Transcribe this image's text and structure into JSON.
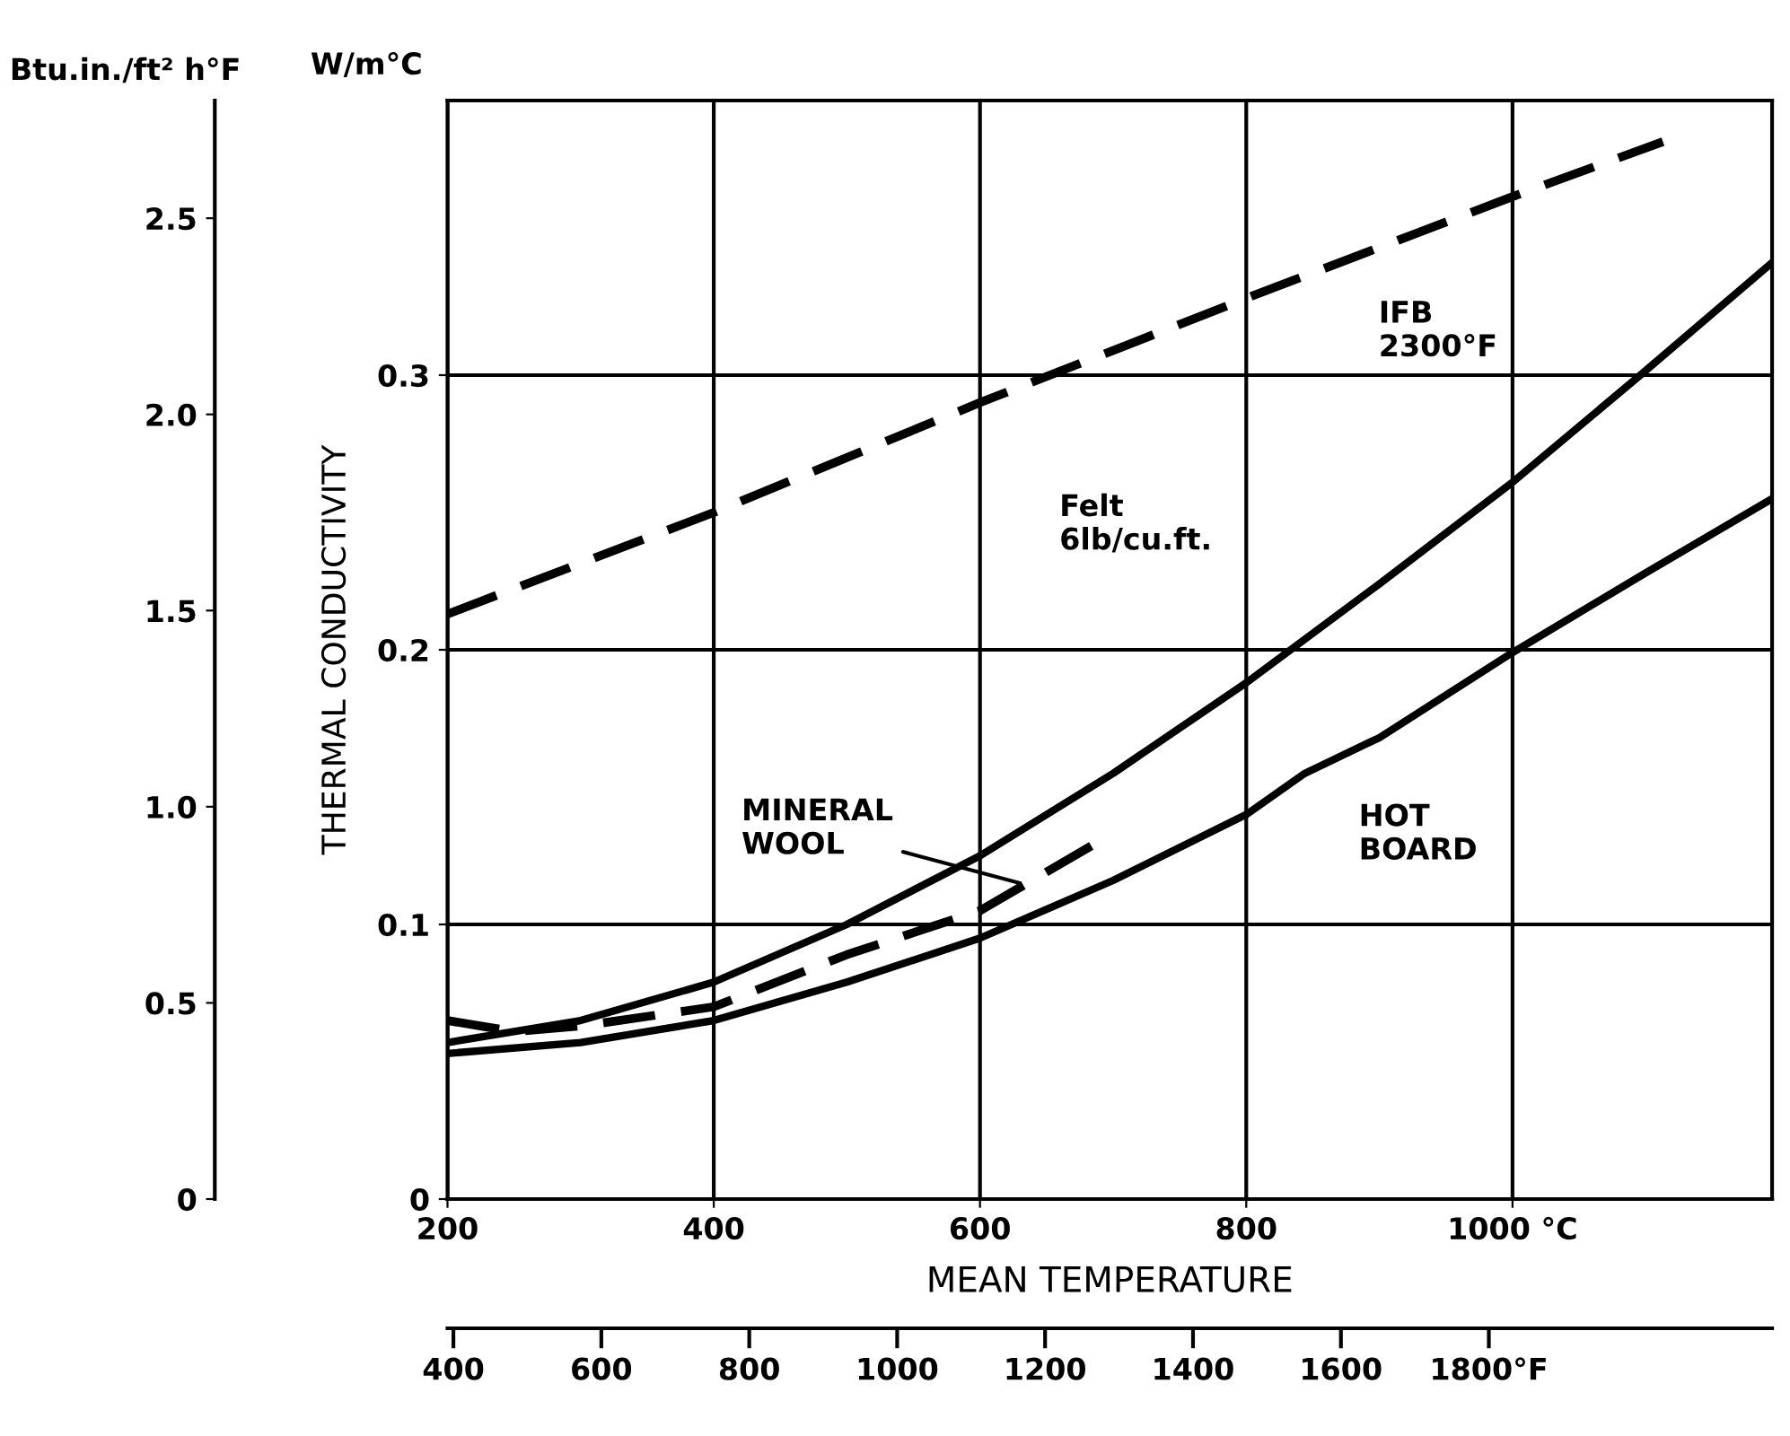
{
  "chart_data": {
    "type": "line",
    "xlabel": "MEAN TEMPERATURE",
    "ylabel": "THERMAL CONDUCTIVITY",
    "y2label": "Btu.in./ft² h°F",
    "xlim": [
      200,
      1195
    ],
    "xticks": [
      200,
      400,
      600,
      800,
      {
        "value": 1000,
        "label": "1000 °C"
      }
    ],
    "ylim": [
      0,
      0.4
    ],
    "yticks": [
      0,
      0.1,
      0.2,
      0.3
    ],
    "y2lim": [
      0,
      2.8
    ],
    "y2ticks": [
      0,
      0.5,
      {
        "value": 1,
        "label": "1.0"
      },
      1.5,
      {
        "value": 2,
        "label": "2.0"
      },
      2.5
    ],
    "x2lim": [
      392,
      2183
    ],
    "x2ticks": [
      400,
      600,
      800,
      1000,
      1200,
      1400,
      1600,
      {
        "value": 1800,
        "label": "1800°F"
      }
    ],
    "grid": true,
    "marker": "none",
    "series": [
      {
        "color": "#000000",
        "line_style": "dashed",
        "x": [
          200,
          400,
          600,
          800,
          1000,
          1113
        ],
        "values": [
          0.213,
          0.25,
          0.29,
          0.328,
          0.365,
          0.385
        ]
      },
      {
        "color": "#000000",
        "line_style": "solid",
        "x": [
          200,
          300,
          400,
          500,
          600,
          700,
          800,
          900,
          1000,
          1096,
          1195
        ],
        "values": [
          0.057,
          0.065,
          0.079,
          0.1,
          0.125,
          0.155,
          0.188,
          0.224,
          0.261,
          0.3,
          0.341
        ]
      },
      {
        "color": "#000000",
        "line_style": "dashed",
        "x": [
          200,
          250,
          300,
          400,
          500,
          600,
          685
        ],
        "values": [
          0.065,
          0.061,
          0.063,
          0.07,
          0.089,
          0.105,
          0.129
        ]
      },
      {
        "color": "#000000",
        "line_style": "solid",
        "x": [
          200,
          300,
          400,
          500,
          600,
          700,
          800,
          844,
          900,
          1000,
          1100,
          1195
        ],
        "values": [
          0.053,
          0.057,
          0.065,
          0.079,
          0.095,
          0.116,
          0.14,
          0.155,
          0.168,
          0.199,
          0.228,
          0.255
        ]
      }
    ],
    "annotations": [
      "IFB\n2300°F",
      "Felt\n6lb/cu.ft.",
      {
        "text": "MINERAL\nWOOL",
        "x": 630,
        "y": 0.115
      },
      "HOT\nBOARD",
      "W/m°C"
    ]
  }
}
